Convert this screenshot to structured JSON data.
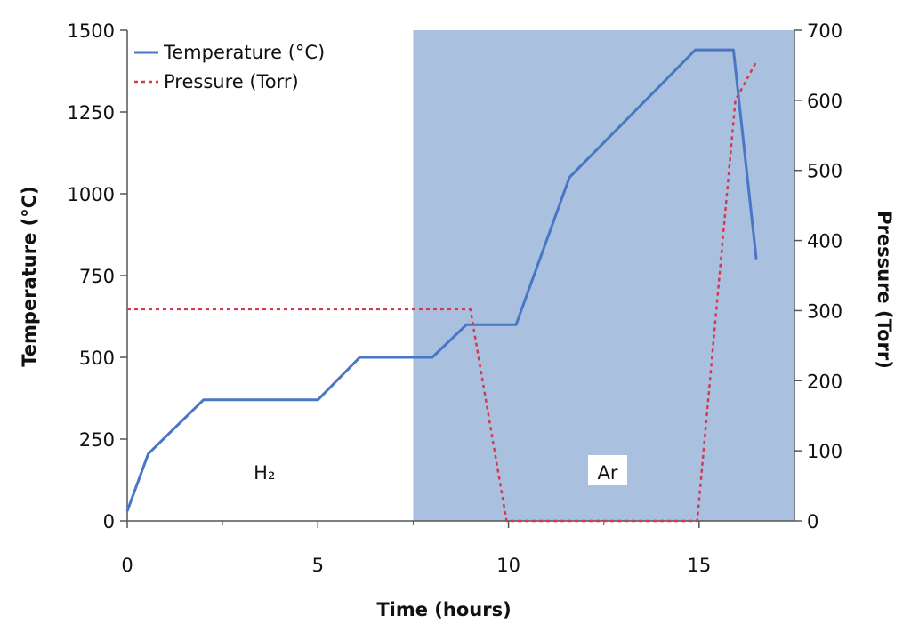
{
  "chart_data": {
    "type": "line",
    "xlabel": "Time (hours)",
    "ylabel": "Temperature (°C)",
    "y2label": "Pressure (Torr)",
    "xlim": [
      0,
      17.5
    ],
    "ylim": [
      0,
      1500
    ],
    "y2lim": [
      0,
      700
    ],
    "xticks": [
      0,
      5,
      10,
      15
    ],
    "yticks": [
      0,
      250,
      500,
      750,
      1000,
      1250,
      1500
    ],
    "y2ticks": [
      0,
      100,
      200,
      300,
      400,
      500,
      600,
      700
    ],
    "grid": false,
    "legend_position": "top-left",
    "series": [
      {
        "name": "Temperature (°C)",
        "axis": "left",
        "style": "solid",
        "color": "#4a76c6",
        "x": [
          0,
          0.55,
          2.0,
          5.0,
          6.1,
          8.0,
          8.9,
          10.2,
          11.6,
          14.9,
          15.9,
          16.5
        ],
        "y": [
          30,
          205,
          370,
          370,
          500,
          500,
          600,
          600,
          1050,
          1440,
          1440,
          800
        ]
      },
      {
        "name": "Pressure (Torr)",
        "axis": "right",
        "style": "dashed",
        "color": "#d23b4f",
        "x": [
          0,
          9.0,
          9.95,
          14.95,
          15.95,
          16.5
        ],
        "y": [
          302,
          302,
          0,
          0,
          600,
          655
        ]
      }
    ],
    "regions": [
      {
        "label": "H₂",
        "x_from": 0,
        "x_to": 7.5,
        "label_x": 3.6,
        "color": "#ffffff"
      },
      {
        "label": "Ar",
        "x_from": 7.5,
        "x_to": 17.5,
        "label_x": 12.6,
        "color": "#a9c0de"
      }
    ]
  }
}
